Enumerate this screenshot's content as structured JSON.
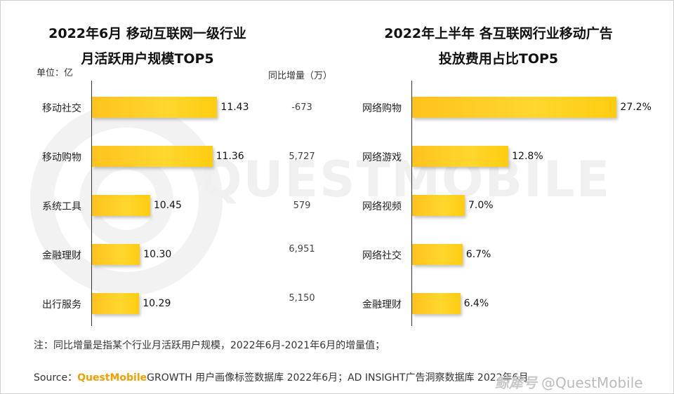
{
  "chart_data": [
    {
      "type": "bar",
      "orientation": "horizontal",
      "title": "2022年6月 移动互联网一级行业月活跃用户规模TOP5",
      "title_lines": [
        "2022年6月 移动互联网一级行业",
        "月活跃用户规模TOP5"
      ],
      "unit_label": "单位：亿",
      "categories": [
        "移动社交",
        "移动购物",
        "系统工具",
        "金融理财",
        "出行服务"
      ],
      "values": [
        11.43,
        11.36,
        10.45,
        10.3,
        10.29
      ],
      "value_labels": [
        "11.43",
        "11.36",
        "10.45",
        "10.30",
        "10.29"
      ],
      "xlim": [
        9.6,
        11.6
      ],
      "extra_column": {
        "header": "同比增量（万）",
        "values": [
          "-673",
          "5,727",
          "579",
          "6,951",
          "5,150"
        ]
      },
      "bar_color": "#ffc81e"
    },
    {
      "type": "bar",
      "orientation": "horizontal",
      "title": "2022年上半年 各互联网行业移动广告投放费用占比TOP5",
      "title_lines": [
        "2022年上半年 各互联网行业移动广告",
        "投放费用占比TOP5"
      ],
      "categories": [
        "网络购物",
        "网络游戏",
        "网络视频",
        "网络社交",
        "金融理财"
      ],
      "values": [
        27.2,
        12.8,
        7.0,
        6.7,
        6.4
      ],
      "value_labels": [
        "27.2%",
        "12.8%",
        "7.0%",
        "6.7%",
        "6.4%"
      ],
      "xlim": [
        0,
        28
      ],
      "bar_color": "#ffc81e"
    }
  ],
  "footer": {
    "note": "注：同比增量是指某个行业月活跃用户规模，2022年6月-2021年6月的增量值；",
    "source_prefix": "Source：",
    "source_brand": "QuestMobile",
    "source_rest": "GROWTH 用户画像标签数据库 2022年6月；AD INSIGHT广告洞察数据库 2022年6月",
    "corner_cn": "鲸犀号",
    "corner_handle": "@QuestMobile"
  },
  "watermark_text": "QUESTMOBILE"
}
